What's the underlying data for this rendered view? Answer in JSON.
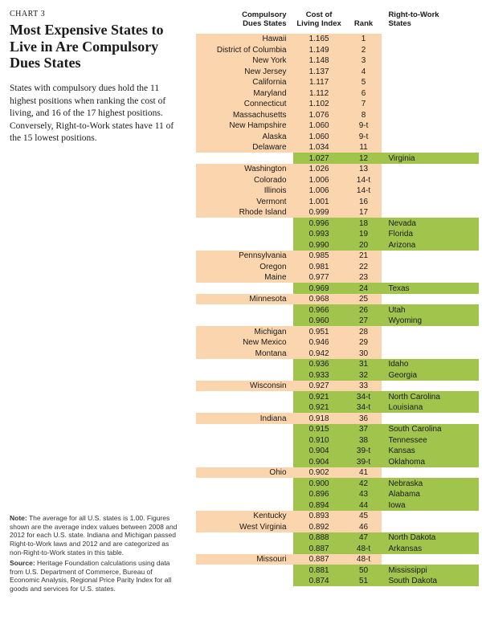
{
  "meta": {
    "chart_label": "CHART 3",
    "title": "Most Expensive States to Live in Are Compulsory Dues States",
    "subtitle": "States with compulsory dues hold the 11 highest positions when ranking the cost of living, and 16 of the 17 highest positions. Conversely, Right-to-Work states have 11 of the 15 lowest positions.",
    "note_label": "Note:",
    "note_text": " The average for all U.S. states is 1.00. Figures shown are the average index values between 2008 and 2012 for each U.S. state. Indiana and Michigan passed Right-to-Work laws and 2012 and are categorized as non-Right-to-Work states in this table.",
    "source_label": "Source:",
    "source_text": " Heritage Foundation calculations using data from U.S. Department of Commerce, Bureau of Economic Analysis, Regional Price Parity Index for all goods and services for U.S. states."
  },
  "headers": {
    "cds": "Compulsory\nDues States",
    "cli": "Cost of\nLiving Index",
    "rank": "Rank",
    "rtw": "Right-to-Work\nStates"
  },
  "colors": {
    "cds_bg": "#fbd5ad",
    "rtw_bg": "#a0c44c",
    "page_bg": "#ffffff",
    "text": "#1a1a1a"
  },
  "rows": [
    {
      "type": "cds",
      "state": "Hawaii",
      "cli": "1.165",
      "rank": "1"
    },
    {
      "type": "cds",
      "state": "District of Columbia",
      "cli": "1.149",
      "rank": "2"
    },
    {
      "type": "cds",
      "state": "New York",
      "cli": "1.148",
      "rank": "3"
    },
    {
      "type": "cds",
      "state": "New Jersey",
      "cli": "1.137",
      "rank": "4"
    },
    {
      "type": "cds",
      "state": "California",
      "cli": "1.117",
      "rank": "5"
    },
    {
      "type": "cds",
      "state": "Maryland",
      "cli": "1.112",
      "rank": "6"
    },
    {
      "type": "cds",
      "state": "Connecticut",
      "cli": "1.102",
      "rank": "7"
    },
    {
      "type": "cds",
      "state": "Massachusetts",
      "cli": "1.076",
      "rank": "8"
    },
    {
      "type": "cds",
      "state": "New Hampshire",
      "cli": "1.060",
      "rank": "9-t"
    },
    {
      "type": "cds",
      "state": "Alaska",
      "cli": "1.060",
      "rank": "9-t"
    },
    {
      "type": "cds",
      "state": "Delaware",
      "cli": "1.034",
      "rank": "11"
    },
    {
      "type": "rtw",
      "state": "Virginia",
      "cli": "1.027",
      "rank": "12"
    },
    {
      "type": "cds",
      "state": "Washington",
      "cli": "1.026",
      "rank": "13"
    },
    {
      "type": "cds",
      "state": "Colorado",
      "cli": "1.006",
      "rank": "14-t"
    },
    {
      "type": "cds",
      "state": "Illinois",
      "cli": "1.006",
      "rank": "14-t"
    },
    {
      "type": "cds",
      "state": "Vermont",
      "cli": "1.001",
      "rank": "16"
    },
    {
      "type": "cds",
      "state": "Rhode Island",
      "cli": "0.999",
      "rank": "17"
    },
    {
      "type": "rtw",
      "state": "Nevada",
      "cli": "0.996",
      "rank": "18"
    },
    {
      "type": "rtw",
      "state": "Florida",
      "cli": "0.993",
      "rank": "19"
    },
    {
      "type": "rtw",
      "state": "Arizona",
      "cli": "0.990",
      "rank": "20"
    },
    {
      "type": "cds",
      "state": "Pennsylvania",
      "cli": "0.985",
      "rank": "21"
    },
    {
      "type": "cds",
      "state": "Oregon",
      "cli": "0.981",
      "rank": "22"
    },
    {
      "type": "cds",
      "state": "Maine",
      "cli": "0.977",
      "rank": "23"
    },
    {
      "type": "rtw",
      "state": "Texas",
      "cli": "0.969",
      "rank": "24"
    },
    {
      "type": "cds",
      "state": "Minnesota",
      "cli": "0.968",
      "rank": "25"
    },
    {
      "type": "rtw",
      "state": "Utah",
      "cli": "0.966",
      "rank": "26"
    },
    {
      "type": "rtw",
      "state": "Wyoming",
      "cli": "0.960",
      "rank": "27"
    },
    {
      "type": "cds",
      "state": "Michigan",
      "cli": "0.951",
      "rank": "28"
    },
    {
      "type": "cds",
      "state": "New Mexico",
      "cli": "0.946",
      "rank": "29"
    },
    {
      "type": "cds",
      "state": "Montana",
      "cli": "0.942",
      "rank": "30"
    },
    {
      "type": "rtw",
      "state": "Idaho",
      "cli": "0.936",
      "rank": "31"
    },
    {
      "type": "rtw",
      "state": "Georgia",
      "cli": "0.933",
      "rank": "32"
    },
    {
      "type": "cds",
      "state": "Wisconsin",
      "cli": "0.927",
      "rank": "33"
    },
    {
      "type": "rtw",
      "state": "North Carolina",
      "cli": "0.921",
      "rank": "34-t"
    },
    {
      "type": "rtw",
      "state": "Louisiana",
      "cli": "0.921",
      "rank": "34-t"
    },
    {
      "type": "cds",
      "state": "Indiana",
      "cli": "0.918",
      "rank": "36"
    },
    {
      "type": "rtw",
      "state": "South Carolina",
      "cli": "0.915",
      "rank": "37"
    },
    {
      "type": "rtw",
      "state": "Tennessee",
      "cli": "0.910",
      "rank": "38"
    },
    {
      "type": "rtw",
      "state": "Kansas",
      "cli": "0.904",
      "rank": "39-t"
    },
    {
      "type": "rtw",
      "state": "Oklahoma",
      "cli": "0.904",
      "rank": "39-t"
    },
    {
      "type": "cds",
      "state": "Ohio",
      "cli": "0.902",
      "rank": "41"
    },
    {
      "type": "rtw",
      "state": "Nebraska",
      "cli": "0.900",
      "rank": "42"
    },
    {
      "type": "rtw",
      "state": "Alabama",
      "cli": "0.896",
      "rank": "43"
    },
    {
      "type": "rtw",
      "state": "Iowa",
      "cli": "0.894",
      "rank": "44"
    },
    {
      "type": "cds",
      "state": "Kentucky",
      "cli": "0.893",
      "rank": "45"
    },
    {
      "type": "cds",
      "state": "West Virginia",
      "cli": "0.892",
      "rank": "46"
    },
    {
      "type": "rtw",
      "state": "North Dakota",
      "cli": "0.888",
      "rank": "47"
    },
    {
      "type": "rtw",
      "state": "Arkansas",
      "cli": "0.887",
      "rank": "48-t"
    },
    {
      "type": "cds",
      "state": "Missouri",
      "cli": "0.887",
      "rank": "48-t"
    },
    {
      "type": "rtw",
      "state": "Mississippi",
      "cli": "0.881",
      "rank": "50"
    },
    {
      "type": "rtw",
      "state": "South Dakota",
      "cli": "0.874",
      "rank": "51"
    }
  ]
}
